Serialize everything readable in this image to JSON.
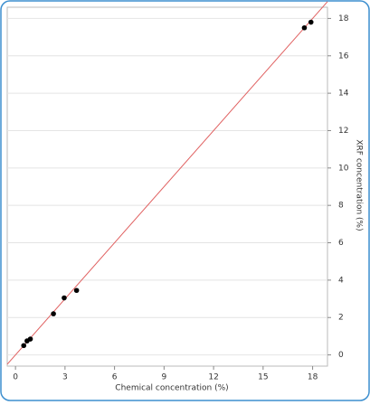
{
  "chart_data": {
    "type": "scatter",
    "x_label": "Chemical concentration (%)",
    "y_label": "XRF concentration (%)",
    "series": [
      {
        "color": "#000000",
        "x": [
          0.5,
          0.7,
          0.9,
          2.3,
          2.95,
          3.7,
          17.5,
          17.9
        ],
        "values": [
          0.5,
          0.75,
          0.85,
          2.2,
          3.05,
          3.45,
          17.5,
          17.8
        ]
      }
    ],
    "reference_line": {
      "slope": 1,
      "intercept": 0,
      "color": "#e06060"
    },
    "xlim": [
      -0.5,
      18.9
    ],
    "xticks": [
      0,
      3,
      6,
      9,
      12,
      15,
      18
    ],
    "ylim": [
      -0.6,
      18.6
    ],
    "yticks": [
      0,
      2,
      4,
      6,
      8,
      10,
      12,
      14,
      16,
      18
    ],
    "grid": true,
    "y_axis_side": "right"
  }
}
